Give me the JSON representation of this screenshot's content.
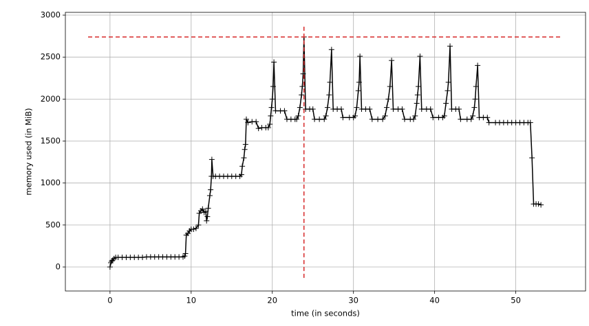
{
  "chart_data": {
    "type": "line",
    "xlabel": "time (in seconds)",
    "ylabel": "memory used (in MiB)",
    "xlim": [
      -5.5,
      58.6
    ],
    "ylim": [
      -286,
      3033
    ],
    "xticks": [
      0,
      10,
      20,
      30,
      40,
      50
    ],
    "yticks": [
      0,
      500,
      1000,
      1500,
      2000,
      2500,
      3000
    ],
    "grid": true,
    "series": [
      {
        "color": "#000000",
        "x": [
          0,
          0.1,
          0.2,
          0.3,
          0.5,
          0.7,
          1,
          1.5,
          2,
          2.5,
          3,
          3.5,
          4,
          4.5,
          5,
          5.5,
          6,
          6.5,
          7,
          7.5,
          8,
          8.5,
          9,
          9.2,
          9.3,
          9.4,
          9.6,
          9.8,
          10,
          10.3,
          10.6,
          10.9,
          11,
          11.2,
          11.4,
          11.6,
          11.8,
          11.9,
          12,
          12.1,
          12.3,
          12.4,
          12.5,
          12.55,
          12.7,
          13,
          13.5,
          14,
          14.5,
          15,
          15.5,
          16,
          16.2,
          16.3,
          16.5,
          16.6,
          16.7,
          16.8,
          17,
          17.5,
          18,
          18.3,
          18.7,
          19.2,
          19.5,
          19.7,
          19.8,
          19.9,
          20,
          20.1,
          20.2,
          20.4,
          21,
          21.5,
          21.8,
          22.3,
          22.8,
          23,
          23.2,
          23.4,
          23.6,
          23.7,
          23.8,
          23.9,
          24.1,
          24.6,
          25,
          25.2,
          25.8,
          26.4,
          26.6,
          26.8,
          27,
          27.1,
          27.3,
          27.5,
          28,
          28.5,
          28.7,
          29.5,
          30,
          30.2,
          30.4,
          30.6,
          30.7,
          30.8,
          31,
          31.5,
          32,
          32.3,
          33,
          33.6,
          33.9,
          34.1,
          34.3,
          34.5,
          34.7,
          34.9,
          35.5,
          36,
          36.3,
          37,
          37.4,
          37.6,
          37.8,
          37.9,
          38,
          38.2,
          38.4,
          39,
          39.5,
          39.8,
          40.5,
          41,
          41.2,
          41.4,
          41.6,
          41.7,
          41.9,
          42.1,
          42.6,
          43,
          43.2,
          44,
          44.5,
          44.7,
          44.9,
          45,
          45.1,
          45.3,
          45.5,
          46,
          46.5,
          46.7,
          47.5,
          48,
          48.5,
          49,
          49.5,
          50,
          50.5,
          51,
          51.5,
          51.8,
          52,
          52.2,
          52.5,
          52.8,
          53.1
        ],
        "values": [
          0,
          50,
          70,
          80,
          100,
          115,
          115,
          115,
          115,
          115,
          115,
          115,
          115,
          120,
          120,
          120,
          120,
          120,
          120,
          120,
          120,
          120,
          120,
          130,
          160,
          380,
          400,
          430,
          450,
          450,
          460,
          500,
          640,
          670,
          690,
          650,
          660,
          550,
          600,
          700,
          850,
          920,
          1080,
          1280,
          1080,
          1080,
          1080,
          1080,
          1080,
          1080,
          1080,
          1080,
          1100,
          1200,
          1300,
          1400,
          1460,
          1760,
          1720,
          1730,
          1730,
          1650,
          1660,
          1660,
          1660,
          1700,
          1800,
          1900,
          2000,
          2150,
          2440,
          1860,
          1860,
          1860,
          1760,
          1760,
          1760,
          1760,
          1800,
          1900,
          2050,
          2150,
          2300,
          2740,
          1880,
          1880,
          1880,
          1760,
          1760,
          1760,
          1800,
          1900,
          2050,
          2200,
          2590,
          1880,
          1880,
          1880,
          1780,
          1780,
          1780,
          1800,
          1900,
          2100,
          2200,
          2510,
          1880,
          1880,
          1880,
          1760,
          1760,
          1760,
          1800,
          1900,
          2000,
          2150,
          2460,
          1880,
          1880,
          1880,
          1760,
          1760,
          1760,
          1800,
          1950,
          2050,
          2150,
          2510,
          1880,
          1880,
          1880,
          1780,
          1780,
          1780,
          1800,
          1950,
          2100,
          2200,
          2630,
          1880,
          1880,
          1880,
          1760,
          1760,
          1760,
          1800,
          1900,
          2000,
          2150,
          2400,
          1780,
          1780,
          1780,
          1720,
          1720,
          1720,
          1720,
          1720,
          1720,
          1720,
          1720,
          1720,
          1720,
          1720,
          1300,
          750,
          750,
          750,
          740
        ]
      }
    ],
    "hline": {
      "y": 2740,
      "xmin": -2.7,
      "xmax": 55.6,
      "color": "#d62728"
    },
    "vline": {
      "x": 23.9,
      "ymin": -130,
      "ymax": 2870,
      "color": "#d62728"
    }
  }
}
